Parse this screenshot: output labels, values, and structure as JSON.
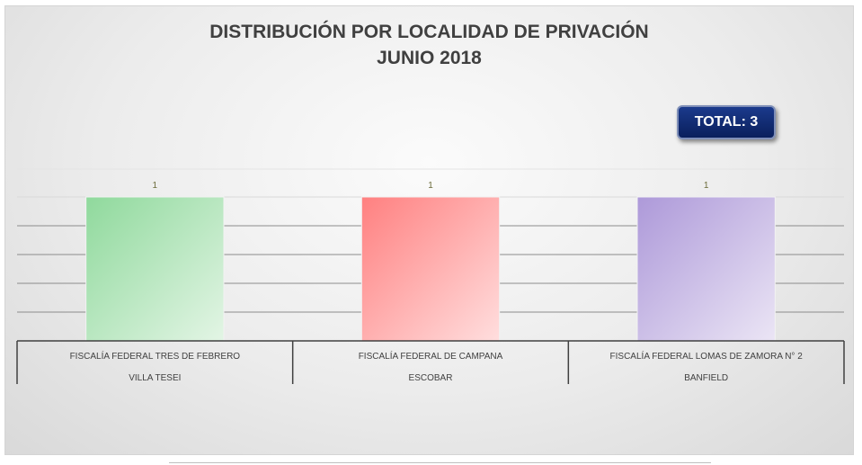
{
  "chart_data": {
    "type": "bar",
    "title": "DISTRIBUCIÓN POR LOCALIDAD DE PRIVACIÓN",
    "subtitle": "JUNIO 2018",
    "categories": [
      {
        "primary": "FISCALÍA FEDERAL TRES DE FEBRERO",
        "secondary": "VILLA TESEI"
      },
      {
        "primary": "FISCALÍA FEDERAL DE CAMPANA",
        "secondary": "ESCOBAR"
      },
      {
        "primary": "FISCALÍA FEDERAL LOMAS DE ZAMORA N° 2",
        "secondary": "BANFIELD"
      }
    ],
    "values": [
      1,
      1,
      1
    ],
    "data_labels": [
      "1",
      "1",
      "1"
    ],
    "bar_colors": [
      {
        "top": "#8fd99c",
        "bottom": "#e3f5e5"
      },
      {
        "top": "#ff8080",
        "bottom": "#ffdede"
      },
      {
        "top": "#ad99d9",
        "bottom": "#ebe5f5"
      }
    ],
    "ylim": [
      0,
      1
    ],
    "grid": true,
    "legend": "none"
  },
  "total_badge": {
    "text": "TOTAL: 3"
  }
}
